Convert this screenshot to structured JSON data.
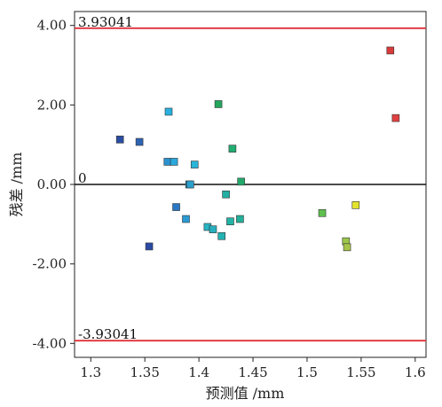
{
  "chart_data": {
    "type": "scatter",
    "title": "",
    "xlabel": "预测值 /mm",
    "ylabel": "残差 /mm",
    "xlim": [
      1.285,
      1.61
    ],
    "ylim": [
      -4.35,
      4.35
    ],
    "xticks": [
      1.3,
      1.35,
      1.4,
      1.45,
      1.5,
      1.55,
      1.6
    ],
    "xtick_labels": [
      "1.3",
      "1.35",
      "1.4",
      "1.45",
      "1.5",
      "1.55",
      "1.6"
    ],
    "yticks": [
      4.0,
      2.0,
      0.0,
      -2.0,
      -4.0
    ],
    "ytick_labels": [
      "4.00",
      "2.00",
      "0.00",
      "-2.00",
      "-4.00"
    ],
    "grid": false,
    "reference_lines": [
      {
        "y": 3.93041,
        "label": "3.93041",
        "color": "#e0303a"
      },
      {
        "y": 0,
        "label": "0",
        "color": "#111111"
      },
      {
        "y": -3.93041,
        "label": "-3.93041",
        "color": "#e0303a"
      }
    ],
    "points": [
      {
        "x": 1.327,
        "y": 1.13,
        "color": "#2b4ea3"
      },
      {
        "x": 1.345,
        "y": 1.07,
        "color": "#2d63b2"
      },
      {
        "x": 1.354,
        "y": -1.56,
        "color": "#2a4aa3"
      },
      {
        "x": 1.371,
        "y": 0.57,
        "color": "#2a92cf"
      },
      {
        "x": 1.372,
        "y": 1.83,
        "color": "#27b0e0"
      },
      {
        "x": 1.377,
        "y": 0.57,
        "color": "#2aa8dc"
      },
      {
        "x": 1.379,
        "y": -0.57,
        "color": "#2a78c4"
      },
      {
        "x": 1.388,
        "y": -0.87,
        "color": "#2a9ad4"
      },
      {
        "x": 1.391,
        "y": 0.0,
        "color": "#1f8ec2"
      },
      {
        "x": 1.392,
        "y": 0.0,
        "color": "#2aa0cc"
      },
      {
        "x": 1.396,
        "y": 0.5,
        "color": "#29b3d8"
      },
      {
        "x": 1.408,
        "y": -1.07,
        "color": "#27b5c3"
      },
      {
        "x": 1.413,
        "y": -1.13,
        "color": "#27afbf"
      },
      {
        "x": 1.418,
        "y": 2.02,
        "color": "#22a65b"
      },
      {
        "x": 1.421,
        "y": -1.3,
        "color": "#22b3b3"
      },
      {
        "x": 1.425,
        "y": -0.25,
        "color": "#22b0a2"
      },
      {
        "x": 1.429,
        "y": -0.93,
        "color": "#23b3a4"
      },
      {
        "x": 1.431,
        "y": 0.9,
        "color": "#22ad72"
      },
      {
        "x": 1.438,
        "y": -0.87,
        "color": "#22b09a"
      },
      {
        "x": 1.439,
        "y": 0.07,
        "color": "#22a86a"
      },
      {
        "x": 1.514,
        "y": -0.72,
        "color": "#5fbf4f"
      },
      {
        "x": 1.536,
        "y": -1.43,
        "color": "#9bc64a"
      },
      {
        "x": 1.537,
        "y": -1.58,
        "color": "#a6c44a"
      },
      {
        "x": 1.545,
        "y": -0.52,
        "color": "#e3e32e"
      },
      {
        "x": 1.577,
        "y": 3.37,
        "color": "#d93a3a"
      },
      {
        "x": 1.582,
        "y": 1.67,
        "color": "#e04040"
      }
    ]
  }
}
